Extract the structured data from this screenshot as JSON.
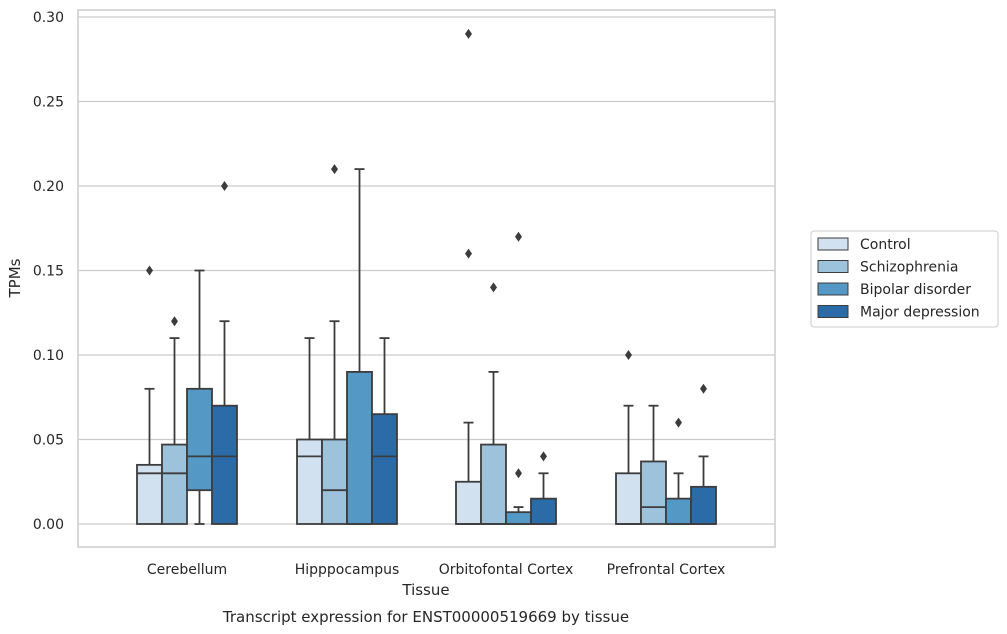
{
  "chart_data": {
    "type": "boxplot",
    "xlabel": "Tissue",
    "ylabel": "TPMs",
    "caption": "Transcript expression for ENST00000519669 by tissue",
    "ylim": [
      -0.014,
      0.3
    ],
    "yticks": [
      0.0,
      0.05,
      0.1,
      0.15,
      0.2,
      0.25,
      0.3
    ],
    "ytick_labels": [
      "0.00",
      "0.05",
      "0.10",
      "0.15",
      "0.20",
      "0.25",
      "0.30"
    ],
    "grid": "horizontal",
    "legend_position": "right",
    "categories": [
      "Cerebellum",
      "Hipppocampus",
      "Orbitofontal Cortex",
      "Prefrontal Cortex"
    ],
    "series": [
      {
        "name": "Control",
        "color": "#d1e1ef",
        "boxes": [
          {
            "q1": 0.0,
            "median": 0.03,
            "q3": 0.035,
            "whisker_low": 0.0,
            "whisker_high": 0.08,
            "outliers": [
              0.15
            ]
          },
          {
            "q1": 0.0,
            "median": 0.04,
            "q3": 0.05,
            "whisker_low": 0.0,
            "whisker_high": 0.11,
            "outliers": []
          },
          {
            "q1": 0.0,
            "median": 0.0,
            "q3": 0.025,
            "whisker_low": 0.0,
            "whisker_high": 0.06,
            "outliers": [
              0.16,
              0.29
            ]
          },
          {
            "q1": 0.0,
            "median": 0.0,
            "q3": 0.03,
            "whisker_low": 0.0,
            "whisker_high": 0.07,
            "outliers": [
              0.1
            ]
          }
        ]
      },
      {
        "name": "Schizophrenia",
        "color": "#9dc3dc",
        "boxes": [
          {
            "q1": 0.0,
            "median": 0.03,
            "q3": 0.047,
            "whisker_low": 0.0,
            "whisker_high": 0.11,
            "outliers": [
              0.12
            ]
          },
          {
            "q1": 0.0,
            "median": 0.02,
            "q3": 0.05,
            "whisker_low": 0.0,
            "whisker_high": 0.12,
            "outliers": [
              0.21
            ]
          },
          {
            "q1": 0.0,
            "median": 0.0,
            "q3": 0.047,
            "whisker_low": 0.0,
            "whisker_high": 0.09,
            "outliers": [
              0.14
            ]
          },
          {
            "q1": 0.0,
            "median": 0.01,
            "q3": 0.037,
            "whisker_low": 0.0,
            "whisker_high": 0.07,
            "outliers": []
          }
        ]
      },
      {
        "name": "Bipolar disorder",
        "color": "#5498c6",
        "boxes": [
          {
            "q1": 0.02,
            "median": 0.04,
            "q3": 0.08,
            "whisker_low": 0.0,
            "whisker_high": 0.15,
            "outliers": []
          },
          {
            "q1": 0.0,
            "median": 0.0,
            "q3": 0.09,
            "whisker_low": 0.0,
            "whisker_high": 0.21,
            "outliers": []
          },
          {
            "q1": 0.0,
            "median": 0.0,
            "q3": 0.007,
            "whisker_low": 0.0,
            "whisker_high": 0.01,
            "outliers": [
              0.03,
              0.17
            ]
          },
          {
            "q1": 0.0,
            "median": 0.0,
            "q3": 0.015,
            "whisker_low": 0.0,
            "whisker_high": 0.03,
            "outliers": [
              0.06
            ]
          }
        ]
      },
      {
        "name": "Major depression",
        "color": "#2b6ba8",
        "boxes": [
          {
            "q1": 0.0,
            "median": 0.04,
            "q3": 0.07,
            "whisker_low": 0.0,
            "whisker_high": 0.12,
            "outliers": [
              0.2
            ]
          },
          {
            "q1": 0.0,
            "median": 0.04,
            "q3": 0.065,
            "whisker_low": 0.0,
            "whisker_high": 0.11,
            "outliers": []
          },
          {
            "q1": 0.0,
            "median": 0.0,
            "q3": 0.015,
            "whisker_low": 0.0,
            "whisker_high": 0.03,
            "outliers": [
              0.04
            ]
          },
          {
            "q1": 0.0,
            "median": 0.0,
            "q3": 0.022,
            "whisker_low": 0.0,
            "whisker_high": 0.04,
            "outliers": [
              0.08
            ]
          }
        ]
      }
    ]
  }
}
